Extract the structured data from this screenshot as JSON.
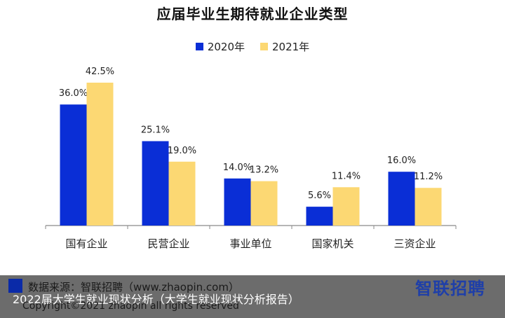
{
  "chart_data": {
    "type": "bar",
    "title": "应届毕业生期待就业企业类型",
    "categories": [
      "国有企业",
      "民营企业",
      "事业单位",
      "国家机关",
      "三资企业"
    ],
    "series": [
      {
        "name": "2020年",
        "color": "#0a2ed6",
        "values": [
          36.0,
          25.1,
          14.0,
          5.6,
          16.0
        ],
        "labels": [
          "36.0%",
          "25.1%",
          "14.0%",
          "5.6%",
          "16.0%"
        ]
      },
      {
        "name": "2021年",
        "color": "#fcd873",
        "values": [
          42.5,
          19.0,
          13.2,
          11.4,
          11.2
        ],
        "labels": [
          "42.5%",
          "19.0%",
          "13.2%",
          "11.4%",
          "11.2%"
        ]
      }
    ],
    "ylim": [
      0,
      42.5
    ],
    "legend": "top-center",
    "grid": false
  },
  "footer": {
    "source": "数据来源：智联招聘（www.zhaopin.com）",
    "brand": "智联招聘",
    "caption": "2022届大学生就业现状分析（大学生就业现状分析报告）",
    "copyright": "Copyright©2021 zhaopin all rights reserved"
  }
}
